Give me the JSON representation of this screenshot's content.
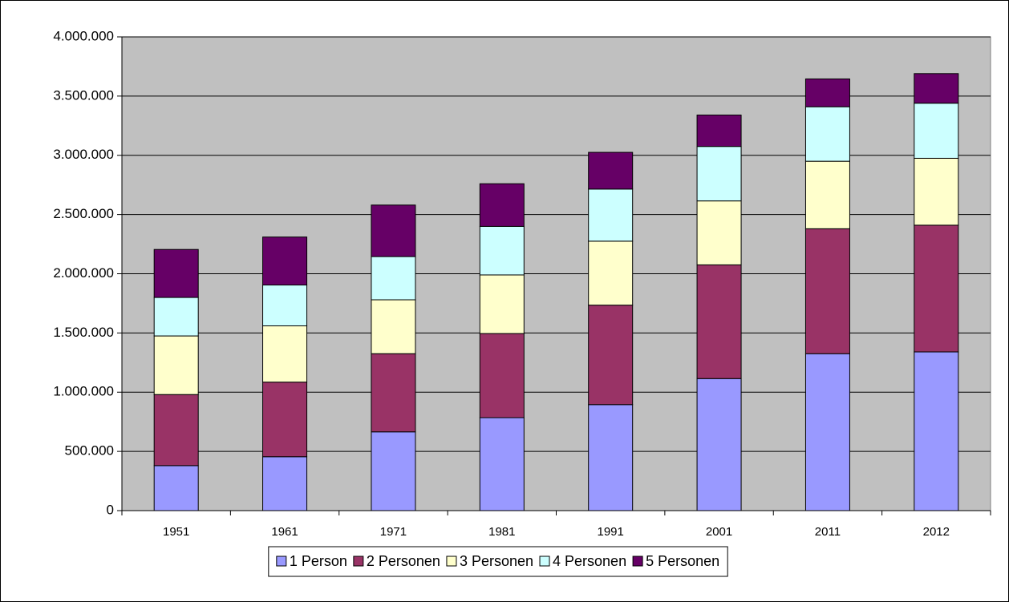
{
  "chart_data": {
    "type": "stacked_bar",
    "categories": [
      "1951",
      "1961",
      "1971",
      "1981",
      "1991",
      "2001",
      "2011",
      "2012"
    ],
    "series": [
      {
        "name": "1 Person",
        "color": "#9999ff",
        "values": [
          380000,
          455000,
          665000,
          785000,
          895000,
          1115000,
          1325000,
          1340000
        ]
      },
      {
        "name": "2 Personen",
        "color": "#993366",
        "values": [
          600000,
          630000,
          660000,
          710000,
          840000,
          960000,
          1055000,
          1070000
        ]
      },
      {
        "name": "3 Personen",
        "color": "#ffffcc",
        "values": [
          495000,
          475000,
          455000,
          495000,
          540000,
          540000,
          570000,
          565000
        ]
      },
      {
        "name": "4 Personen",
        "color": "#ccffff",
        "values": [
          325000,
          345000,
          365000,
          410000,
          440000,
          460000,
          460000,
          465000
        ]
      },
      {
        "name": "5 Personen",
        "color": "#660066",
        "values": [
          405000,
          405000,
          435000,
          360000,
          310000,
          265000,
          235000,
          250000
        ]
      }
    ],
    "ylim": [
      0,
      4000000
    ],
    "yticks": [
      0,
      {
        "value": 500000,
        "label": "500.000"
      },
      {
        "value": 1000000,
        "label": "1.000.000"
      },
      {
        "value": 1500000,
        "label": "1.500.000"
      },
      {
        "value": 2000000,
        "label": "2.000.000"
      },
      {
        "value": 2500000,
        "label": "2.500.000"
      },
      {
        "value": 3000000,
        "label": "3.000.000"
      },
      {
        "value": 3500000,
        "label": "3.500.000"
      },
      {
        "value": 4000000,
        "label": "4.000.000"
      }
    ],
    "grid": true,
    "plot_background": "#c0c0c0",
    "legend": "bottom"
  }
}
